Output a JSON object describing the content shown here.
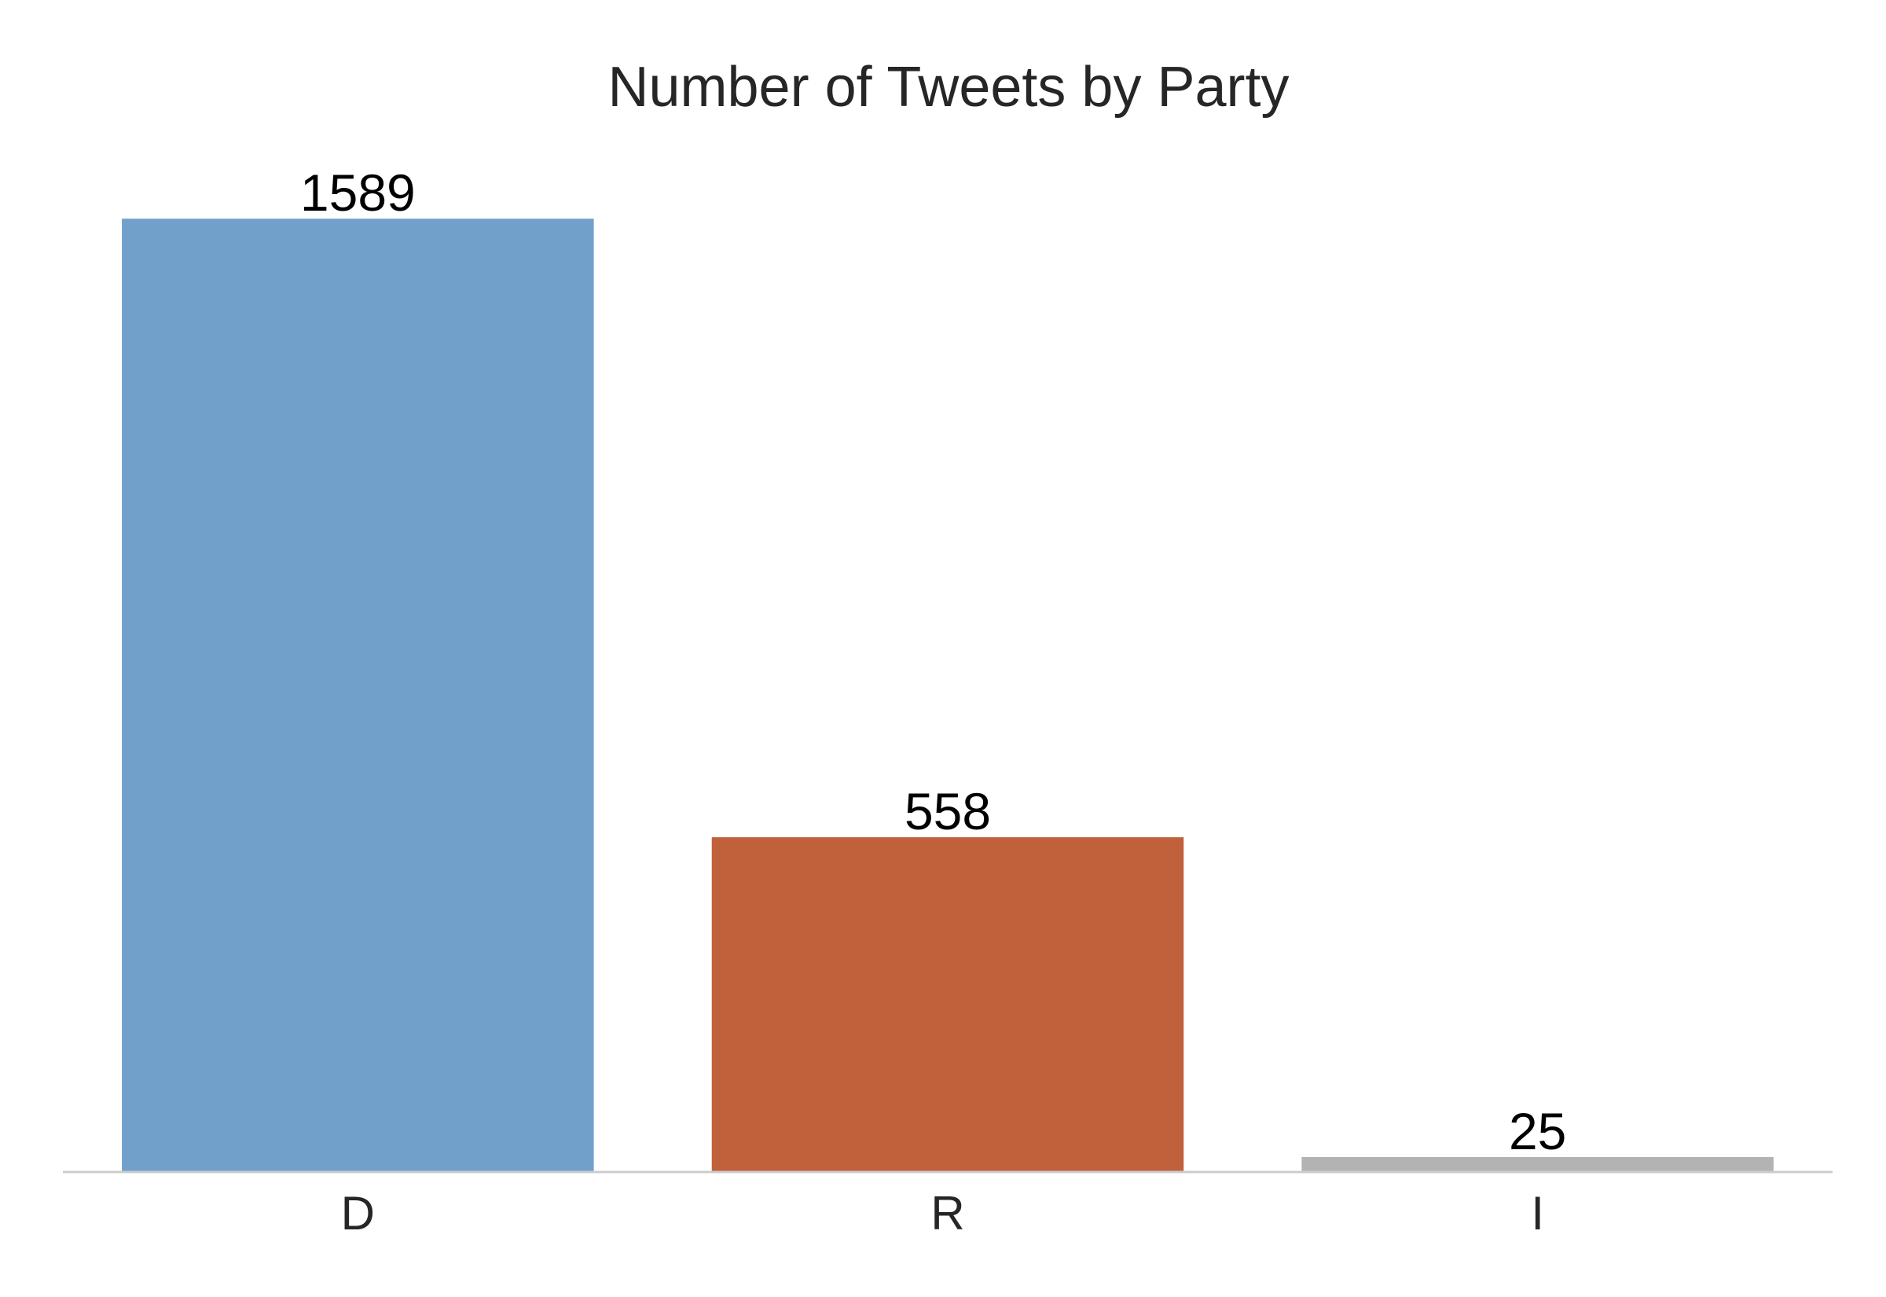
{
  "chart_data": {
    "type": "bar",
    "title": "Number of Tweets by Party",
    "xlabel": "",
    "ylabel": "",
    "categories": [
      "D",
      "R",
      "I"
    ],
    "values": [
      1589,
      558,
      25
    ],
    "data_labels": [
      "1589",
      "558",
      "25"
    ],
    "colors": [
      "#71a1cb",
      "#c1613c",
      "#b3b3b3"
    ],
    "axis_color": "#cccccc",
    "ylim": [
      0,
      1660
    ],
    "grid": false,
    "legend": "none"
  }
}
